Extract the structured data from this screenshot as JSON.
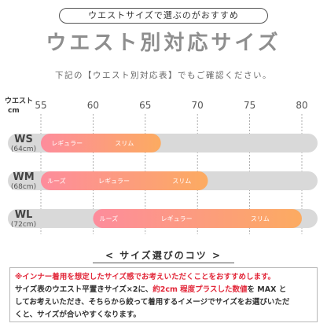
{
  "header": {
    "pill": "ウエストサイズで選ぶのがおすすめ",
    "title": "ウエスト別対応サイズ",
    "subtitle": "下記の【ウエスト別対応表】でもご確認ください。"
  },
  "chart_data": {
    "type": "bar",
    "axis_label_top": "ウエスト",
    "axis_label_unit": "cm",
    "ticks": [
      55,
      60,
      65,
      70,
      75,
      80
    ],
    "xlim": [
      55,
      80
    ],
    "rows": [
      {
        "name": "WS",
        "sub": "(64cm)",
        "range": [
          55,
          66.5
        ],
        "fit_labels": [
          {
            "text": "レギュラー",
            "at": 57.5
          },
          {
            "text": "スリム",
            "at": 63
          }
        ]
      },
      {
        "name": "WM",
        "sub": "(68cm)",
        "range": [
          55,
          71
        ],
        "fit_labels": [
          {
            "text": "ルーズ",
            "at": 56.5
          },
          {
            "text": "レギュラー",
            "at": 62
          },
          {
            "text": "スリム",
            "at": 68.5
          }
        ]
      },
      {
        "name": "WL",
        "sub": "(72cm)",
        "range": [
          60,
          80
        ],
        "fit_labels": [
          {
            "text": "ルーズ",
            "at": 61.5
          },
          {
            "text": "レギュラー",
            "at": 68
          },
          {
            "text": "スリム",
            "at": 76
          }
        ]
      }
    ],
    "colors": {
      "track": "#d9d9d9",
      "grad_start": "#fd8c9c",
      "grad_end": "#fcab61",
      "text": "#444444"
    }
  },
  "tips": {
    "title": "< サイズ選びのコツ >",
    "line1": "※インナー着用を想定したサイズ感でお考えいただくことをおすすめします。",
    "line2a": "サイズ表のウエスト平置きサイズ×2に、",
    "line2b": "約2cm 程度プラスした数値",
    "line2c": "を MAX と",
    "line3": "してお考えいただき、そちらから絞って着用するイメージでサイズをお選びいただ",
    "line4": "くと、サイズが合いやすくなります。"
  }
}
